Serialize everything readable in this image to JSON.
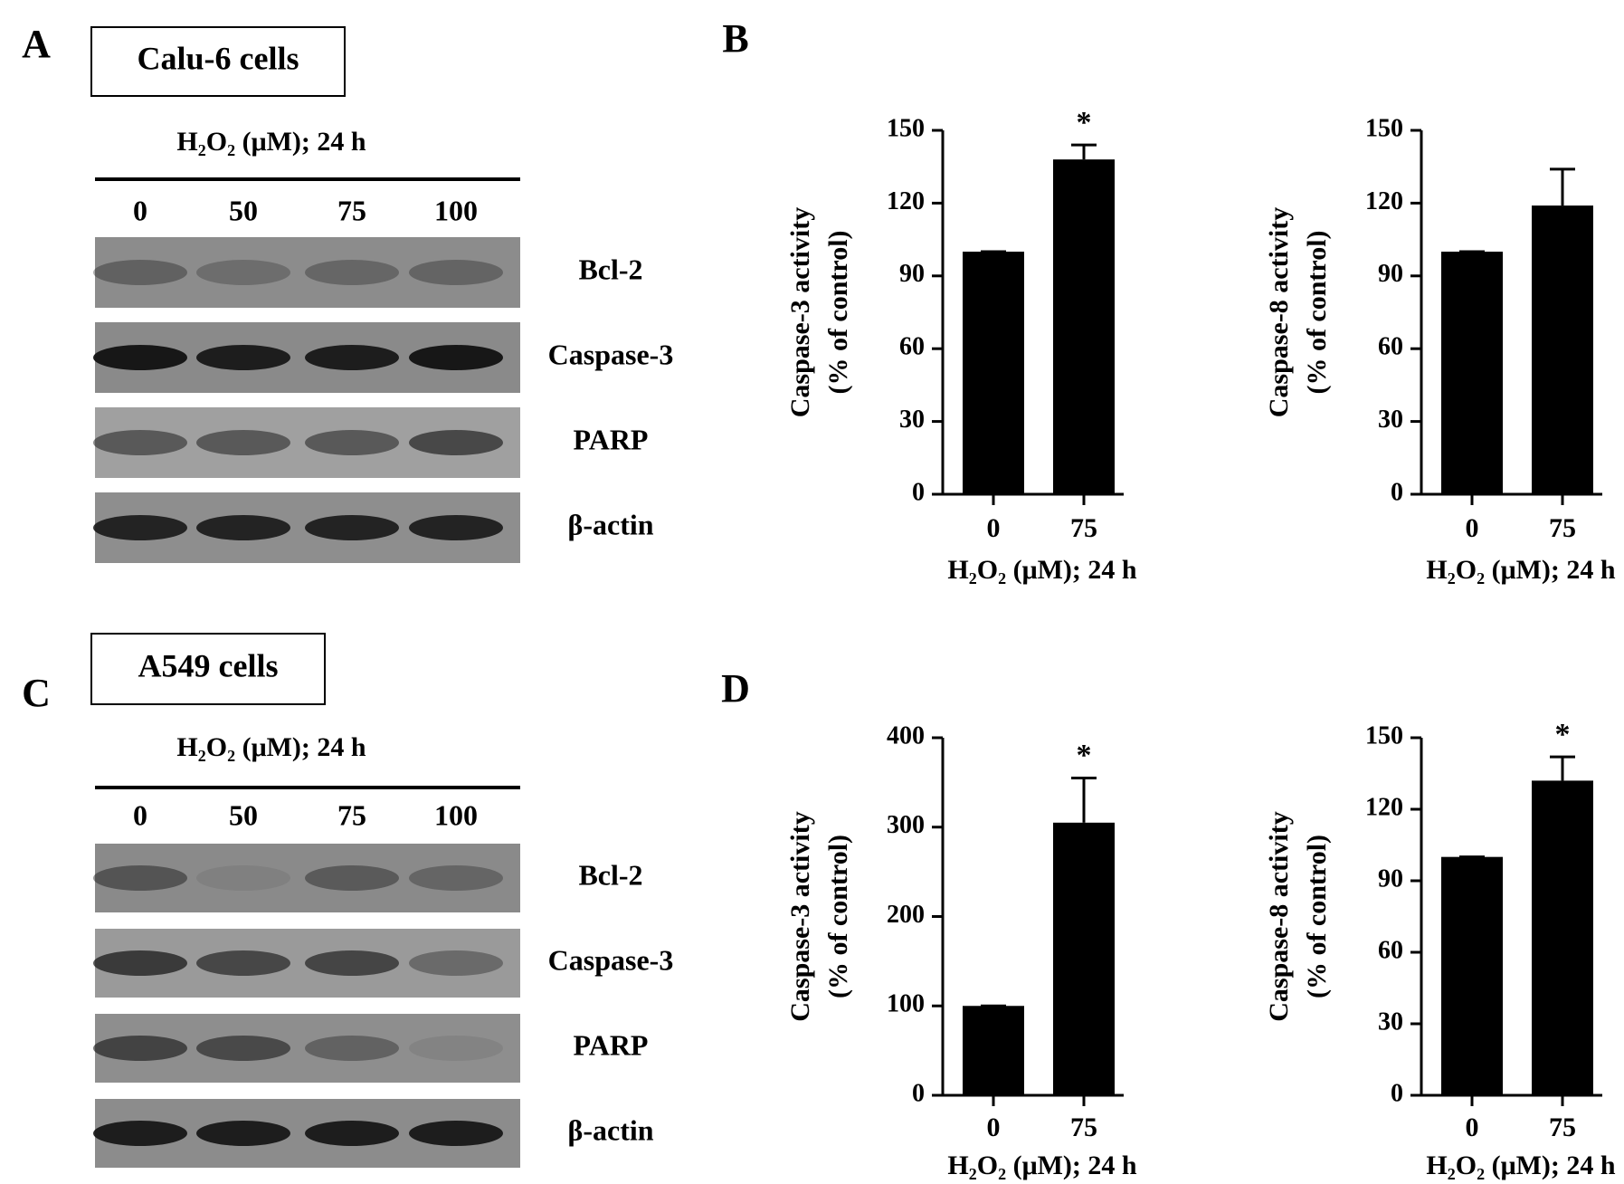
{
  "letters": [
    "A",
    "B",
    "C",
    "D"
  ],
  "blots": [
    {
      "title": "Calu-6 cells",
      "treatment": "H₂O₂ (μM); 24 h",
      "lanes": [
        "0",
        "50",
        "75",
        "100"
      ],
      "proteins": [
        "Bcl-2",
        "Caspase-3",
        "PARP",
        "β-actin"
      ]
    },
    {
      "title": "A549 cells",
      "treatment": "H₂O₂ (μM); 24 h",
      "lanes": [
        "0",
        "50",
        "75",
        "100"
      ],
      "proteins": [
        "Bcl-2",
        "Caspase-3",
        "PARP",
        "β-actin"
      ]
    }
  ],
  "chart_data": [
    {
      "type": "bar",
      "ylabel": [
        "Caspase-3 activity",
        "(% of control)"
      ],
      "xlabel": "H₂O₂ (μM); 24 h",
      "categories": [
        "0",
        "75"
      ],
      "values": [
        100,
        138
      ],
      "errors": [
        0,
        6
      ],
      "significance": [
        null,
        "*"
      ],
      "color": "#000000",
      "ylim": [
        0,
        150
      ],
      "yticks": [
        0,
        30,
        60,
        90,
        120,
        150
      ]
    },
    {
      "type": "bar",
      "ylabel": [
        "Caspase-8 activity",
        "(% of control)"
      ],
      "xlabel": "H₂O₂ (μM); 24 h",
      "categories": [
        "0",
        "75"
      ],
      "values": [
        100,
        119
      ],
      "errors": [
        0,
        15
      ],
      "significance": [
        null,
        null
      ],
      "color": "#000000",
      "ylim": [
        0,
        150
      ],
      "yticks": [
        0,
        30,
        60,
        90,
        120,
        150
      ]
    },
    {
      "type": "bar",
      "ylabel": [
        "Caspase-3 activity",
        "(% of control)"
      ],
      "xlabel": "H₂O₂ (μM); 24 h",
      "categories": [
        "0",
        "75"
      ],
      "values": [
        100,
        305
      ],
      "errors": [
        0,
        50
      ],
      "significance": [
        null,
        "*"
      ],
      "color": "#000000",
      "ylim": [
        0,
        400
      ],
      "yticks": [
        0,
        100,
        200,
        300,
        400
      ]
    },
    {
      "type": "bar",
      "ylabel": [
        "Caspase-8 activity",
        "(% of control)"
      ],
      "xlabel": "H₂O₂ (μM); 24 h",
      "categories": [
        "0",
        "75"
      ],
      "values": [
        100,
        132
      ],
      "errors": [
        0,
        10
      ],
      "significance": [
        null,
        "*"
      ],
      "color": "#000000",
      "ylim": [
        0,
        150
      ],
      "yticks": [
        0,
        30,
        60,
        90,
        120,
        150
      ]
    }
  ]
}
